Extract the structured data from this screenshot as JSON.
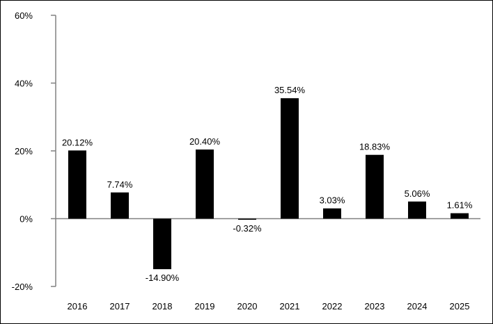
{
  "chart_data": {
    "type": "bar",
    "title": "",
    "xlabel": "",
    "ylabel": "",
    "categories": [
      "2016",
      "2017",
      "2018",
      "2019",
      "2020",
      "2021",
      "2022",
      "2023",
      "2024",
      "2025"
    ],
    "values": [
      20.12,
      7.74,
      -14.9,
      20.4,
      -0.32,
      35.54,
      3.03,
      18.83,
      5.06,
      1.61
    ],
    "data_labels": [
      "20.12%",
      "7.74%",
      "-14.90%",
      "20.40%",
      "-0.32%",
      "35.54%",
      "3.03%",
      "18.83%",
      "5.06%",
      "1.61%"
    ],
    "ylim": [
      -20,
      60
    ],
    "y_ticks": [
      -20,
      0,
      20,
      40,
      60
    ],
    "y_tick_labels": [
      "-20%",
      "0%",
      "20%",
      "40%",
      "60%"
    ],
    "grid": false,
    "legend": "none",
    "bar_color": "#000000",
    "axis_color": "#808080"
  }
}
